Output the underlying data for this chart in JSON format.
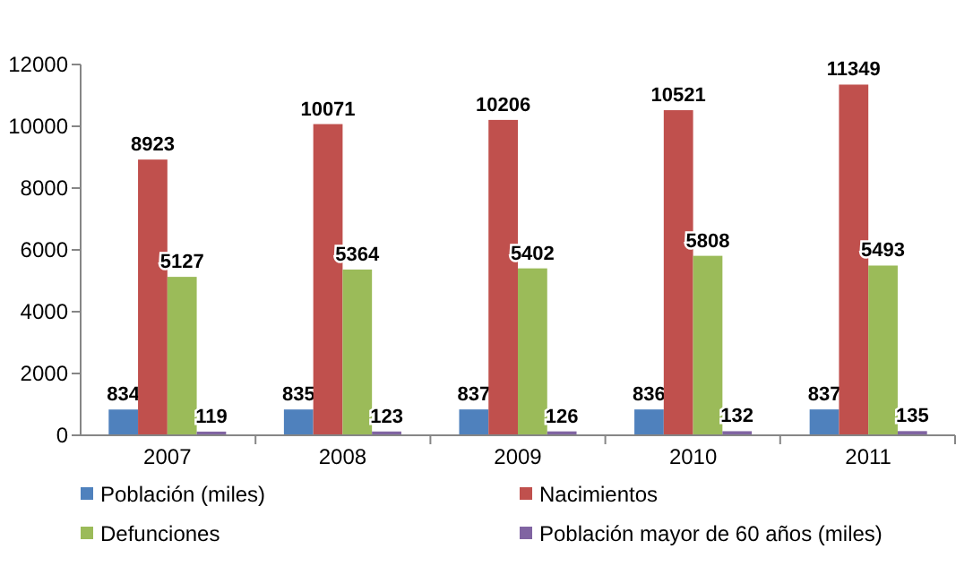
{
  "chart_data": {
    "type": "bar",
    "categories": [
      "2007",
      "2008",
      "2009",
      "2010",
      "2011"
    ],
    "series": [
      {
        "name": "Población (miles)",
        "color": "#4f81bd",
        "values": [
          834,
          835,
          837,
          836,
          837
        ]
      },
      {
        "name": "Nacimientos",
        "color": "#c0504d",
        "values": [
          8923,
          10071,
          10206,
          10521,
          11349
        ]
      },
      {
        "name": "Defunciones",
        "color": "#9bbb59",
        "values": [
          5127,
          5364,
          5402,
          5808,
          5493
        ]
      },
      {
        "name": "Población mayor de 60 años (miles)",
        "color": "#8064a2",
        "values": [
          119,
          123,
          126,
          132,
          135
        ]
      }
    ],
    "ylim": [
      0,
      12000
    ],
    "yticks": [
      0,
      2000,
      4000,
      6000,
      8000,
      10000,
      12000
    ],
    "data_labels": true,
    "legend": "bottom",
    "grid": false
  }
}
